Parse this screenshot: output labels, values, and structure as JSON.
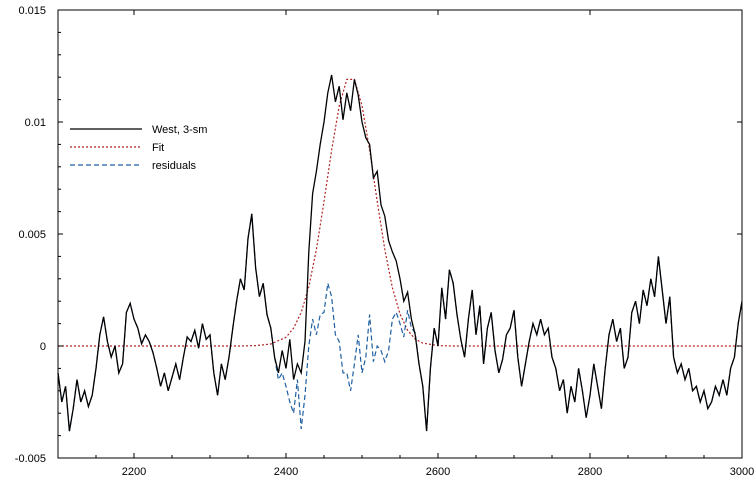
{
  "chart_data": {
    "type": "line",
    "title": "",
    "xlabel": "",
    "ylabel": "",
    "xlim": [
      2100,
      3000
    ],
    "ylim": [
      -0.005,
      0.015
    ],
    "xticks": [
      2200,
      2400,
      2600,
      2800,
      3000
    ],
    "xtick_labels": [
      "2200",
      "2400",
      "2600",
      "2800",
      "3000"
    ],
    "yticks": [
      -0.005,
      0,
      0.005,
      0.01,
      0.015
    ],
    "ytick_labels": [
      "-0.005",
      "0",
      "0.005",
      "0.01",
      "0.015"
    ],
    "grid": false,
    "legend": {
      "placement": "top-left",
      "entries": [
        "West, 3-sm",
        "Fit",
        "residuals"
      ]
    },
    "series": [
      {
        "name": "West, 3-sm",
        "color": "#000000",
        "dash": "solid",
        "x": [
          2100,
          2105,
          2110,
          2115,
          2120,
          2125,
          2130,
          2135,
          2140,
          2145,
          2150,
          2155,
          2160,
          2165,
          2170,
          2175,
          2180,
          2185,
          2190,
          2195,
          2200,
          2205,
          2210,
          2215,
          2220,
          2225,
          2230,
          2235,
          2240,
          2245,
          2250,
          2255,
          2260,
          2265,
          2270,
          2275,
          2280,
          2285,
          2290,
          2295,
          2300,
          2305,
          2310,
          2315,
          2320,
          2325,
          2330,
          2335,
          2340,
          2345,
          2350,
          2355,
          2360,
          2365,
          2370,
          2375,
          2380,
          2385,
          2390,
          2395,
          2400,
          2405,
          2410,
          2415,
          2420,
          2425,
          2430,
          2435,
          2440,
          2445,
          2450,
          2455,
          2460,
          2465,
          2470,
          2475,
          2480,
          2485,
          2490,
          2495,
          2500,
          2505,
          2510,
          2515,
          2520,
          2525,
          2530,
          2535,
          2540,
          2545,
          2550,
          2555,
          2560,
          2565,
          2570,
          2575,
          2580,
          2585,
          2590,
          2595,
          2600,
          2605,
          2610,
          2615,
          2620,
          2625,
          2630,
          2635,
          2640,
          2645,
          2650,
          2655,
          2660,
          2665,
          2670,
          2675,
          2680,
          2685,
          2690,
          2695,
          2700,
          2705,
          2710,
          2715,
          2720,
          2725,
          2730,
          2735,
          2740,
          2745,
          2750,
          2755,
          2760,
          2765,
          2770,
          2775,
          2780,
          2785,
          2790,
          2795,
          2800,
          2805,
          2810,
          2815,
          2820,
          2825,
          2830,
          2835,
          2840,
          2845,
          2850,
          2855,
          2860,
          2865,
          2870,
          2875,
          2880,
          2885,
          2890,
          2895,
          2900,
          2905,
          2910,
          2915,
          2920,
          2925,
          2930,
          2935,
          2940,
          2945,
          2950,
          2955,
          2960,
          2965,
          2970,
          2975,
          2980,
          2985,
          2990,
          2995,
          3000
        ],
        "y": [
          -0.0012,
          -0.0025,
          -0.0018,
          -0.0038,
          -0.0028,
          -0.0015,
          -0.0025,
          -0.002,
          -0.0027,
          -0.0022,
          -0.001,
          0.0005,
          0.0013,
          0.0002,
          -0.0005,
          0.0,
          -0.0012,
          -0.0008,
          0.0015,
          0.0019,
          0.0012,
          0.0008,
          0.0001,
          0.0005,
          0.0002,
          -0.0003,
          -0.001,
          -0.0018,
          -0.0012,
          -0.002,
          -0.0014,
          -0.0008,
          -0.0015,
          -0.0005,
          0.0004,
          0.0002,
          0.0007,
          -0.0001,
          0.001,
          0.0003,
          0.0005,
          -0.0012,
          -0.0022,
          -0.0008,
          -0.0015,
          -0.0005,
          0.0008,
          0.002,
          0.003,
          0.0025,
          0.0048,
          0.0059,
          0.0035,
          0.0022,
          0.0028,
          0.0014,
          0.0008,
          -0.0005,
          -0.0012,
          -0.0002,
          -0.001,
          0.0003,
          -0.0015,
          -0.0008,
          -0.0012,
          0.0002,
          0.0042,
          0.0068,
          0.0078,
          0.009,
          0.01,
          0.0113,
          0.0121,
          0.0109,
          0.0116,
          0.0101,
          0.0113,
          0.0105,
          0.0119,
          0.0112,
          0.01,
          0.0093,
          0.009,
          0.0075,
          0.0078,
          0.0063,
          0.0058,
          0.0047,
          0.0042,
          0.0038,
          0.003,
          0.002,
          0.0024,
          0.0012,
          0.0005,
          -0.0008,
          -0.0018,
          -0.0038,
          -0.001,
          0.0008,
          0.0,
          0.0026,
          0.0012,
          0.0034,
          0.0028,
          0.0014,
          0.0003,
          -0.0005,
          0.0012,
          0.0025,
          0.0005,
          0.0018,
          -0.0008,
          0.0008,
          0.0015,
          -0.0002,
          -0.0012,
          -0.0006,
          0.0005,
          0.0008,
          0.0016,
          -0.0005,
          -0.0018,
          -0.0008,
          0.0002,
          0.001,
          0.0005,
          0.0012,
          0.0005,
          0.0008,
          -0.0005,
          -0.001,
          -0.002,
          -0.0015,
          -0.003,
          -0.0018,
          -0.0025,
          -0.001,
          -0.002,
          -0.0032,
          -0.0022,
          -0.0008,
          -0.0018,
          -0.0028,
          -0.001,
          0.0005,
          0.0012,
          0.0002,
          0.0008,
          -0.001,
          -0.0005,
          0.0015,
          0.002,
          0.001,
          0.0025,
          0.0018,
          0.003,
          0.0022,
          0.004,
          0.0025,
          0.001,
          0.0022,
          -0.0005,
          -0.0012,
          -0.0008,
          -0.0015,
          -0.001,
          -0.002,
          -0.0018,
          -0.0025,
          -0.002,
          -0.0028,
          -0.0025,
          -0.0018,
          -0.0022,
          -0.0015,
          -0.0022,
          -0.001,
          -0.0005,
          0.001,
          0.002
        ]
      },
      {
        "name": "Fit",
        "color": "#b22222",
        "dash": "dotted",
        "x": [
          2100,
          2300,
          2320,
          2340,
          2360,
          2380,
          2400,
          2410,
          2420,
          2430,
          2440,
          2450,
          2460,
          2470,
          2480,
          2490,
          2500,
          2510,
          2520,
          2530,
          2540,
          2550,
          2560,
          2570,
          2580,
          2600,
          2620,
          2640,
          2660,
          2680,
          3000
        ],
        "y": [
          0,
          0,
          0,
          0,
          2e-05,
          9e-05,
          0.00039,
          0.0008,
          0.00149,
          0.00264,
          0.00431,
          0.00645,
          0.00873,
          0.01071,
          0.0119,
          0.0119,
          0.01073,
          0.00876,
          0.00646,
          0.00431,
          0.0026,
          0.00143,
          0.0007,
          0.00031,
          0.00013,
          2e-05,
          0,
          0,
          0,
          0,
          0
        ]
      },
      {
        "name": "residuals",
        "color": "#1f5fa0",
        "dash": "dashed",
        "x": [
          2100,
          2105,
          2110,
          2115,
          2120,
          2125,
          2130,
          2135,
          2140,
          2145,
          2150,
          2155,
          2160,
          2165,
          2170,
          2175,
          2180,
          2185,
          2190,
          2195,
          2200,
          2205,
          2210,
          2215,
          2220,
          2225,
          2230,
          2235,
          2240,
          2245,
          2250,
          2255,
          2260,
          2265,
          2270,
          2275,
          2280,
          2285,
          2290,
          2295,
          2300,
          2305,
          2310,
          2315,
          2320,
          2325,
          2330,
          2335,
          2340,
          2345,
          2350,
          2355,
          2360,
          2365,
          2370,
          2375,
          2380,
          2385,
          2390,
          2395,
          2400,
          2405,
          2410,
          2415,
          2420,
          2425,
          2430,
          2435,
          2440,
          2445,
          2450,
          2455,
          2460,
          2465,
          2470,
          2475,
          2480,
          2485,
          2490,
          2495,
          2500,
          2505,
          2510,
          2515,
          2520,
          2525,
          2530,
          2535,
          2540,
          2545,
          2550,
          2555,
          2560,
          2565,
          2570,
          2575,
          2580,
          2585,
          2590,
          2595,
          2600,
          2605,
          2610,
          2615,
          2620,
          2625,
          2630,
          2635,
          2640,
          2645,
          2650,
          2655,
          2660,
          2665,
          2670,
          2675,
          2680,
          2685,
          2690,
          2695,
          2700,
          2705,
          2710,
          2715,
          2720,
          2725,
          2730,
          2735,
          2740,
          2745,
          2750,
          2755,
          2760,
          2765,
          2770,
          2775,
          2780,
          2785,
          2790,
          2795,
          2800,
          2805,
          2810,
          2815,
          2820,
          2825,
          2830,
          2835,
          2840,
          2845,
          2850,
          2855,
          2860,
          2865,
          2870,
          2875,
          2880,
          2885,
          2890,
          2895,
          2900,
          2905,
          2910,
          2915,
          2920,
          2925,
          2930,
          2935,
          2940,
          2945,
          2950,
          2955,
          2960,
          2965,
          2970,
          2975,
          2980,
          2985,
          2990,
          2995,
          3000
        ],
        "y": [
          -0.0012,
          -0.0025,
          -0.0018,
          -0.0038,
          -0.0028,
          -0.0015,
          -0.0025,
          -0.002,
          -0.0027,
          -0.0022,
          -0.001,
          0.0005,
          0.0013,
          0.0002,
          -0.0005,
          0.0,
          -0.0012,
          -0.0008,
          0.0015,
          0.0019,
          0.0012,
          0.0008,
          0.0001,
          0.0005,
          0.0002,
          -0.0003,
          -0.001,
          -0.0018,
          -0.0012,
          -0.002,
          -0.0014,
          -0.0008,
          -0.0015,
          -0.0005,
          0.0004,
          0.0002,
          0.0007,
          -0.0001,
          0.001,
          0.0003,
          0.0005,
          -0.0012,
          -0.0022,
          -0.0008,
          -0.0015,
          -0.0005,
          0.0008,
          0.002,
          0.003,
          0.0025,
          0.0048,
          0.0059,
          0.0035,
          0.0022,
          0.0028,
          0.0014,
          0.0008,
          -0.0005,
          -0.0015,
          -0.0012,
          -0.0018,
          -0.0025,
          -0.003,
          -0.0015,
          -0.0037,
          -0.0022,
          0.0,
          0.0012,
          0.0005,
          0.0014,
          0.0015,
          0.0028,
          0.0022,
          0.0005,
          0.0002,
          -0.0012,
          -0.0012,
          -0.002,
          -0.0008,
          0.0005,
          -0.0012,
          -0.0005,
          0.0014,
          -0.0007,
          0.0,
          -0.0002,
          -0.0007,
          -0.0002,
          0.0012,
          0.0015,
          0.001,
          0.0004,
          0.0016,
          0.0008,
          0.0006,
          -0.0008,
          -0.0018,
          -0.0038,
          -0.001,
          0.0008,
          0.0,
          0.0026,
          0.0012,
          0.0034,
          0.0028,
          0.0014,
          0.0003,
          -0.0005,
          0.0012,
          0.0025,
          0.0005,
          0.0018,
          -0.0008,
          0.0008,
          0.0015,
          -0.0002,
          -0.0012,
          -0.0006,
          0.0005,
          0.0008,
          0.0016,
          -0.0005,
          -0.0018,
          -0.0008,
          0.0002,
          0.001,
          0.0005,
          0.0012,
          0.0005,
          0.0008,
          -0.0005,
          -0.001,
          -0.002,
          -0.0015,
          -0.003,
          -0.0018,
          -0.0025,
          -0.001,
          -0.002,
          -0.0032,
          -0.0022,
          -0.0008,
          -0.0018,
          -0.0028,
          -0.001,
          0.0005,
          0.0012,
          0.0002,
          0.0008,
          -0.001,
          -0.0005,
          0.0015,
          0.002,
          0.001,
          0.0025,
          0.0018,
          0.003,
          0.0022,
          0.004,
          0.0025,
          0.001,
          0.0022,
          -0.0005,
          -0.0012,
          -0.0008,
          -0.0015,
          -0.001,
          -0.002,
          -0.0018,
          -0.0025,
          -0.002,
          -0.0028,
          -0.0025,
          -0.0018,
          -0.0022,
          -0.0015,
          -0.0022,
          -0.001,
          -0.0005,
          0.001,
          0.002
        ]
      }
    ]
  }
}
